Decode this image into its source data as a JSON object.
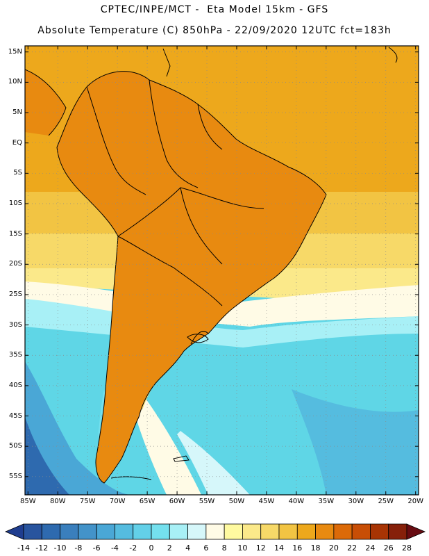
{
  "header": {
    "title_line1": "CPTEC/INPE/MCT -  Eta Model 15km - GFS",
    "title_line2": "Absolute Temperature (C) 850hPa - 22/09/2020 12UTC fct=183h"
  },
  "axes": {
    "lat_labels": [
      "15N",
      "10N",
      "5N",
      "EQ",
      "5S",
      "10S",
      "15S",
      "20S",
      "25S",
      "30S",
      "35S",
      "40S",
      "45S",
      "50S",
      "55S"
    ],
    "lon_labels": [
      "85W",
      "80W",
      "75W",
      "70W",
      "65W",
      "60W",
      "55W",
      "50W",
      "45W",
      "40W",
      "35W",
      "30W",
      "25W",
      "20W"
    ],
    "lat_extent_deg": [
      -58,
      16
    ],
    "lon_extent_deg": [
      -85.5,
      -19.5
    ]
  },
  "colorbar": {
    "labels": [
      "-14",
      "-12",
      "-10",
      "-8",
      "-6",
      "-4",
      "-2",
      "0",
      "2",
      "4",
      "6",
      "8",
      "10",
      "12",
      "14",
      "16",
      "18",
      "20",
      "22",
      "24",
      "26",
      "28"
    ],
    "colors": [
      "#1f3d8f",
      "#28549e",
      "#2e6aaf",
      "#3a7fbd",
      "#4393c9",
      "#4aa7d6",
      "#55bcdf",
      "#63d0e8",
      "#74e0ee",
      "#a8f0f6",
      "#d6f7fa",
      "#fffbe6",
      "#fffaa0",
      "#fbe98a",
      "#f7d968",
      "#f2c443",
      "#eda81c",
      "#e88a10",
      "#dc6a08",
      "#c84e06",
      "#a83404",
      "#86200a",
      "#680c12"
    ]
  },
  "map": {
    "ocean_color": "#5fd6e6",
    "land_color": "#e88a10",
    "grid": true
  }
}
